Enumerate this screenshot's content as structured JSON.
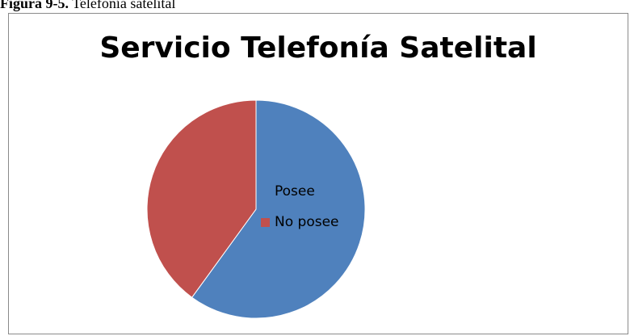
{
  "figure_caption": {
    "label": "Figura 9-5.",
    "text": "Telefonía satelital"
  },
  "chart_data": {
    "type": "pie",
    "title": "Servicio Telefonía Satelital",
    "categories": [
      "Posee",
      "No posee"
    ],
    "values": [
      60,
      40
    ],
    "colors": [
      "#4F81BD",
      "#C0504D"
    ],
    "legend_position": "right"
  }
}
